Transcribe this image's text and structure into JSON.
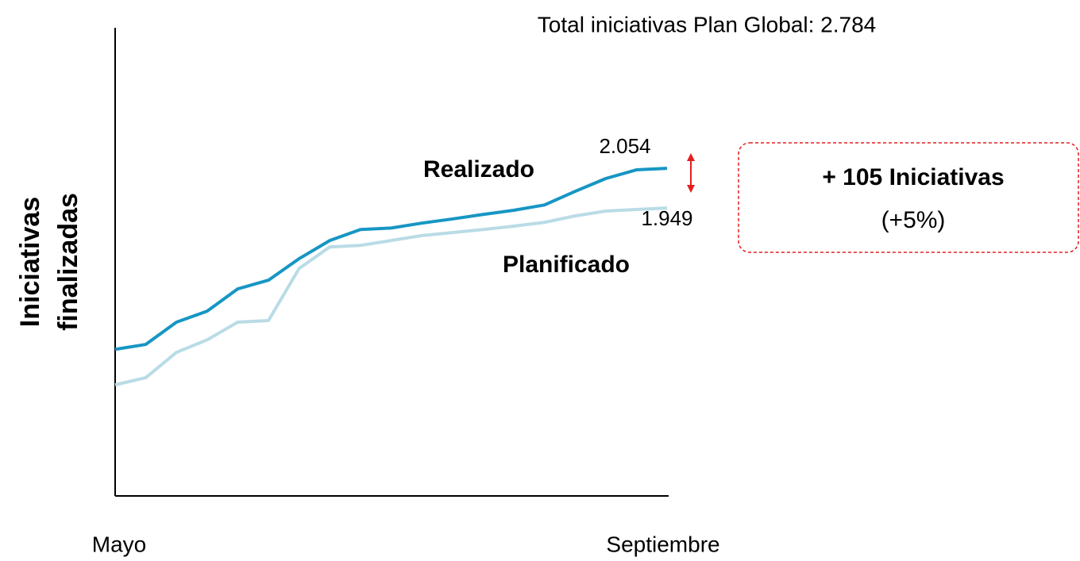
{
  "chart_data": {
    "type": "line",
    "title": "Total iniciativas Plan Global: 2.784",
    "y_label": [
      "Iniciativas",
      "finalizadas"
    ],
    "categories": [
      "Mayo",
      null,
      null,
      null,
      null,
      null,
      null,
      null,
      null,
      null,
      null,
      null,
      null,
      null,
      null,
      null,
      null,
      null,
      "Septiembre"
    ],
    "series": [
      {
        "name": "Realizado",
        "color": "#1796c4",
        "values": [
          1575,
          1588,
          1647,
          1676,
          1735,
          1758,
          1815,
          1863,
          1892,
          1896,
          1909,
          1920,
          1932,
          1943,
          1957,
          1993,
          2027,
          2050,
          2054
        ],
        "value_labels": [
          null,
          null,
          null,
          null,
          null,
          null,
          null,
          null,
          null,
          null,
          null,
          null,
          null,
          null,
          null,
          null,
          null,
          null,
          "2.054"
        ]
      },
      {
        "name": "Planificado",
        "color": "#b9dce6",
        "values": [
          1481,
          1500,
          1567,
          1600,
          1647,
          1651,
          1789,
          1846,
          1850,
          1863,
          1876,
          1884,
          1892,
          1901,
          1911,
          1928,
          1941,
          1945,
          1949
        ],
        "value_labels": [
          null,
          null,
          null,
          null,
          null,
          null,
          null,
          null,
          null,
          null,
          null,
          null,
          null,
          null,
          null,
          null,
          null,
          null,
          "1.949"
        ]
      }
    ],
    "ylim": [
      1187,
      2426
    ],
    "annotations": [
      "+ 105 Iniciativas",
      "(+5%)"
    ]
  }
}
